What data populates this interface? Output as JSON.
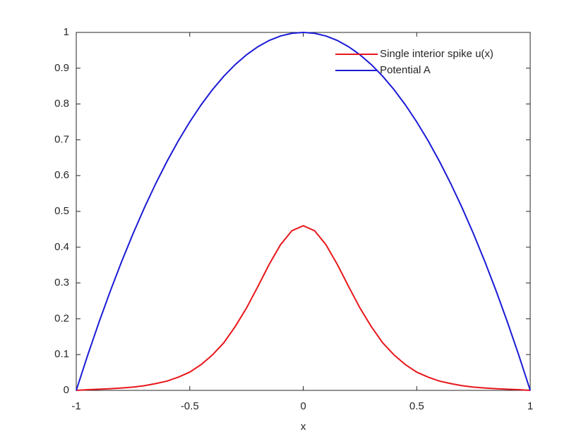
{
  "chart_data": {
    "type": "line",
    "x_label": "x",
    "x": [
      -1,
      -0.95,
      -0.9,
      -0.85,
      -0.8,
      -0.75,
      -0.7,
      -0.65,
      -0.6,
      -0.55,
      -0.5,
      -0.45,
      -0.4,
      -0.35,
      -0.3,
      -0.25,
      -0.2,
      -0.15,
      -0.1,
      -0.05,
      0,
      0.05,
      0.1,
      0.15,
      0.2,
      0.25,
      0.3,
      0.35,
      0.4,
      0.45,
      0.5,
      0.55,
      0.6,
      0.65,
      0.7,
      0.75,
      0.8,
      0.85,
      0.9,
      0.95,
      1
    ],
    "series": [
      {
        "name": "Single interior spike u(x)",
        "color": "#e8161a",
        "values": [
          0,
          0.002,
          0.0032,
          0.0046,
          0.0066,
          0.009,
          0.013,
          0.019,
          0.026,
          0.037,
          0.051,
          0.072,
          0.099,
          0.133,
          0.178,
          0.23,
          0.29,
          0.352,
          0.407,
          0.446,
          0.46,
          0.446,
          0.407,
          0.352,
          0.29,
          0.23,
          0.178,
          0.133,
          0.099,
          0.072,
          0.051,
          0.037,
          0.026,
          0.019,
          0.013,
          0.009,
          0.0066,
          0.0046,
          0.0032,
          0.002,
          0
        ]
      },
      {
        "name": "Potential A",
        "color": "#1a1ad6",
        "values": [
          0,
          0.0975,
          0.19,
          0.2775,
          0.36,
          0.4375,
          0.51,
          0.5775,
          0.64,
          0.6975,
          0.75,
          0.7975,
          0.84,
          0.8775,
          0.91,
          0.9375,
          0.96,
          0.9775,
          0.99,
          0.9975,
          1,
          0.9975,
          0.99,
          0.9775,
          0.96,
          0.9375,
          0.91,
          0.8775,
          0.84,
          0.7975,
          0.75,
          0.6975,
          0.64,
          0.5775,
          0.51,
          0.4375,
          0.36,
          0.2775,
          0.19,
          0.0975,
          0
        ]
      }
    ],
    "xlim": [
      -1,
      1
    ],
    "xticks": [
      -1,
      -0.5,
      0,
      0.5,
      1
    ],
    "ylim": [
      0,
      1
    ],
    "yticks": [
      0,
      0.1,
      0.2,
      0.3,
      0.4,
      0.5,
      0.6,
      0.7,
      0.8,
      0.9,
      1
    ],
    "grid": false,
    "legend": "top-right"
  }
}
